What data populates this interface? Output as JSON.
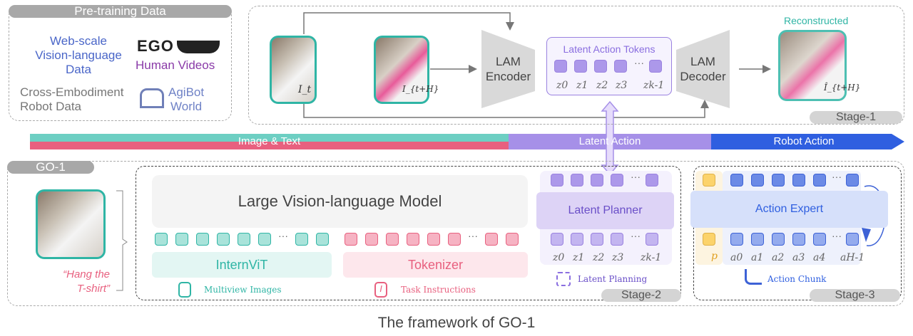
{
  "pretraining": {
    "title": "Pre-training Data",
    "web": [
      "Web-scale",
      "Vision-language",
      "Data"
    ],
    "ego_logo": "EGO 4D",
    "human_videos": "Human Videos",
    "cross": [
      "Cross-Embodiment",
      "Robot Data"
    ],
    "agibot": [
      "AgiBot",
      "World"
    ]
  },
  "stage1": {
    "frame_t": "I_t",
    "frame_th": "I_{t+H}",
    "encoder": [
      "LAM",
      "Encoder"
    ],
    "tokens_title": "Latent Action Tokens",
    "tokens": [
      "z0",
      "z1",
      "z2",
      "z3",
      "zk-1"
    ],
    "decoder": [
      "LAM",
      "Decoder"
    ],
    "reconstructed": "Reconstructed",
    "recon_label": "Î_{t+H}",
    "stage": "Stage-1"
  },
  "timeline": {
    "image_text": "Image & Text",
    "latent_action": "Latent Action",
    "robot_action": "Robot Action",
    "colors": {
      "teal": "#6dcfc3",
      "pink": "#e8607f",
      "purple": "#a690e8",
      "blue": "#2f5fe0"
    }
  },
  "go1": {
    "title": "GO-1",
    "instruction": [
      "“Hang the",
      "T-shirt”"
    ],
    "lvm": "Large Vision-language Model",
    "internvit": "InternViT",
    "tokenizer": "Tokenizer",
    "multiview": "Multiview Images",
    "task": "Task Instructions"
  },
  "stage2": {
    "planner": "Latent Planner",
    "tokens": [
      "z0",
      "z1",
      "z2",
      "z3",
      "zk-1"
    ],
    "caption": "Latent Planning",
    "stage": "Stage-2"
  },
  "stage3": {
    "expert": "Action Expert",
    "p": "p",
    "tokens": [
      "a0",
      "a1",
      "a2",
      "a3",
      "a4",
      "aH-1"
    ],
    "caption": "Action Chunk",
    "stage": "Stage-3"
  },
  "caption": "The framework of GO-1"
}
